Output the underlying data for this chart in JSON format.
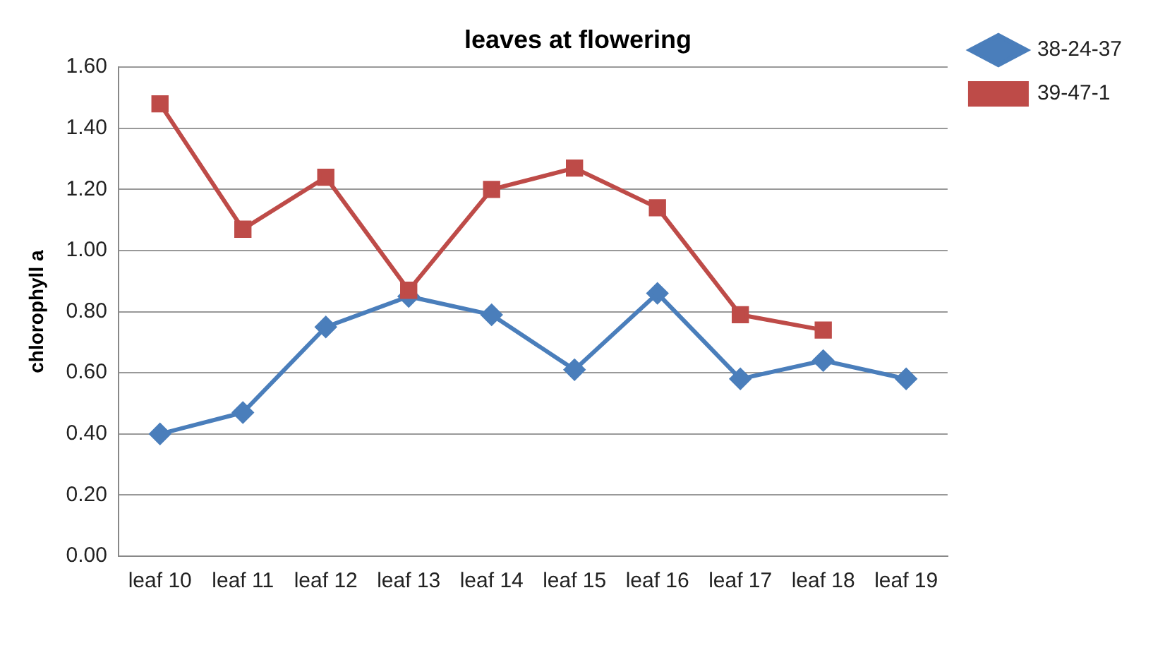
{
  "chart_data": {
    "type": "line",
    "title": "leaves at flowering",
    "ylabel": "chlorophyll a",
    "categories": [
      "leaf 10",
      "leaf 11",
      "leaf 12",
      "leaf 13",
      "leaf 14",
      "leaf 15",
      "leaf 16",
      "leaf 17",
      "leaf 18",
      "leaf 19"
    ],
    "series": [
      {
        "name": "38-24-37",
        "color": "#4a7ebb",
        "marker": "diamond",
        "values": [
          0.4,
          0.47,
          0.75,
          0.85,
          0.79,
          0.61,
          0.86,
          0.58,
          0.64,
          0.58
        ]
      },
      {
        "name": "39-47-1",
        "color": "#be4b48",
        "marker": "square",
        "values": [
          1.48,
          1.07,
          1.24,
          0.87,
          1.2,
          1.27,
          1.14,
          0.79,
          0.74,
          null
        ]
      }
    ],
    "ylim": [
      0,
      1.6
    ],
    "yticks": [
      {
        "value": 0,
        "label": "0.00"
      },
      {
        "value": 0.2,
        "label": "0.20"
      },
      {
        "value": 0.4,
        "label": "0.40"
      },
      {
        "value": 0.6,
        "label": "0.60"
      },
      {
        "value": 0.8,
        "label": "0.80"
      },
      {
        "value": 1.0,
        "label": "1.00"
      },
      {
        "value": 1.2,
        "label": "1.20"
      },
      {
        "value": 1.4,
        "label": "1.40"
      },
      {
        "value": 1.6,
        "label": "1.60"
      }
    ],
    "grid": "y",
    "legend": "right"
  }
}
